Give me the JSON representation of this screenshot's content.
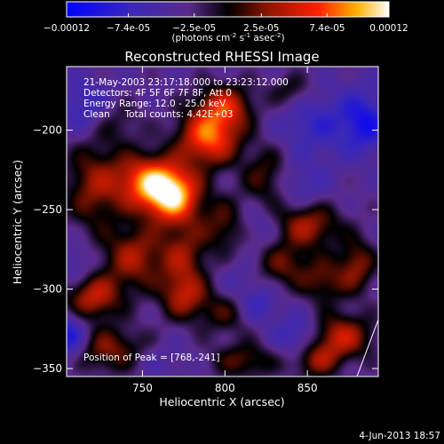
{
  "chart_data": {
    "type": "heatmap",
    "title": "Reconstructed RHESSI Image",
    "xlabel": "Heliocentric X (arcsec)",
    "ylabel": "Heliocentric Y (arcsec)",
    "xlim": [
      704,
      893
    ],
    "ylim": [
      -355,
      -160
    ],
    "xticks": [
      750,
      800,
      850
    ],
    "yticks": [
      -200,
      -250,
      -300,
      -350
    ],
    "annotations": [
      "21-May-2003 23:17:18.000 to 23:23:12.000",
      "Detectors: 4F 5F 6F 7F 8F, Att 0",
      "Energy Range: 12.0 - 25.0 keV",
      "Clean     Total counts: 4.42E+03"
    ],
    "peak_label": "Position of Peak = [768,-241]",
    "peak": [
      768,
      -241
    ],
    "colorbar": {
      "range": [
        -0.00012,
        0.00012
      ],
      "tick_labels": [
        "-0.00012",
        "-7.4e-05",
        "-2.5e-05",
        "2.5e-05",
        "7.4e-05",
        "0.00012"
      ],
      "unit_main": "(photons cm",
      "unit_exp1": "-2",
      "unit_mid": " s",
      "unit_exp2": "-1",
      "unit_end": " asec",
      "unit_exp3": "-2",
      "unit_close": ")"
    },
    "sources": [
      {
        "x": 768,
        "y": -241,
        "value": 0.00012,
        "sx": 12,
        "sy": 12
      },
      {
        "x": 752,
        "y": -232,
        "value": 9e-05,
        "sx": 14,
        "sy": 12
      },
      {
        "x": 790,
        "y": -205,
        "value": 0.0001,
        "sx": 13,
        "sy": 12
      },
      {
        "x": 800,
        "y": -185,
        "value": 7e-05,
        "sx": 12,
        "sy": 10
      },
      {
        "x": 720,
        "y": -235,
        "value": 5e-05,
        "sx": 12,
        "sy": 20
      },
      {
        "x": 745,
        "y": -280,
        "value": 6e-05,
        "sx": 13,
        "sy": 14
      },
      {
        "x": 775,
        "y": -280,
        "value": 5e-05,
        "sx": 10,
        "sy": 16
      },
      {
        "x": 775,
        "y": -305,
        "value": 5e-05,
        "sx": 10,
        "sy": 10
      },
      {
        "x": 720,
        "y": -305,
        "value": 7e-05,
        "sx": 12,
        "sy": 10
      },
      {
        "x": 730,
        "y": -338,
        "value": 5e-05,
        "sx": 16,
        "sy": 10
      },
      {
        "x": 800,
        "y": -260,
        "value": 4e-05,
        "sx": 10,
        "sy": 12
      },
      {
        "x": 825,
        "y": -230,
        "value": 4e-05,
        "sx": 10,
        "sy": 14
      },
      {
        "x": 850,
        "y": -260,
        "value": 6e-05,
        "sx": 14,
        "sy": 10
      },
      {
        "x": 835,
        "y": -285,
        "value": 4e-05,
        "sx": 12,
        "sy": 10
      },
      {
        "x": 860,
        "y": -295,
        "value": 4e-05,
        "sx": 10,
        "sy": 10
      },
      {
        "x": 880,
        "y": -285,
        "value": 5e-05,
        "sx": 8,
        "sy": 12
      },
      {
        "x": 870,
        "y": -330,
        "value": 7e-05,
        "sx": 14,
        "sy": 10
      },
      {
        "x": 855,
        "y": -345,
        "value": 5e-05,
        "sx": 10,
        "sy": 8
      },
      {
        "x": 800,
        "y": -315,
        "value": 3e-05,
        "sx": 12,
        "sy": 10
      },
      {
        "x": 812,
        "y": -345,
        "value": 4e-05,
        "sx": 14,
        "sy": 8
      },
      {
        "x": 715,
        "y": -185,
        "value": -5e-05,
        "sx": 12,
        "sy": 12
      },
      {
        "x": 735,
        "y": -195,
        "value": 2e-05,
        "sx": 10,
        "sy": 10
      },
      {
        "x": 855,
        "y": -195,
        "value": -5e-05,
        "sx": 16,
        "sy": 16
      },
      {
        "x": 885,
        "y": -195,
        "value": -7e-05,
        "sx": 10,
        "sy": 14
      },
      {
        "x": 845,
        "y": -235,
        "value": -4e-05,
        "sx": 12,
        "sy": 10
      },
      {
        "x": 820,
        "y": -260,
        "value": -4e-05,
        "sx": 10,
        "sy": 10
      },
      {
        "x": 810,
        "y": -295,
        "value": -3e-05,
        "sx": 10,
        "sy": 10
      },
      {
        "x": 710,
        "y": -285,
        "value": -4e-05,
        "sx": 8,
        "sy": 10
      },
      {
        "x": 705,
        "y": -330,
        "value": -8e-05,
        "sx": 8,
        "sy": 10
      },
      {
        "x": 760,
        "y": -345,
        "value": -3e-05,
        "sx": 12,
        "sy": 8
      },
      {
        "x": 845,
        "y": -330,
        "value": -6e-05,
        "sx": 10,
        "sy": 10
      },
      {
        "x": 820,
        "y": -310,
        "value": -5e-05,
        "sx": 8,
        "sy": 8
      },
      {
        "x": 840,
        "y": -175,
        "value": 3e-05,
        "sx": 10,
        "sy": 8
      }
    ]
  },
  "footer": {
    "date": "4-Jun-2013 18:57"
  },
  "colors": {
    "background": "#000000",
    "foreground": "#ffffff"
  }
}
